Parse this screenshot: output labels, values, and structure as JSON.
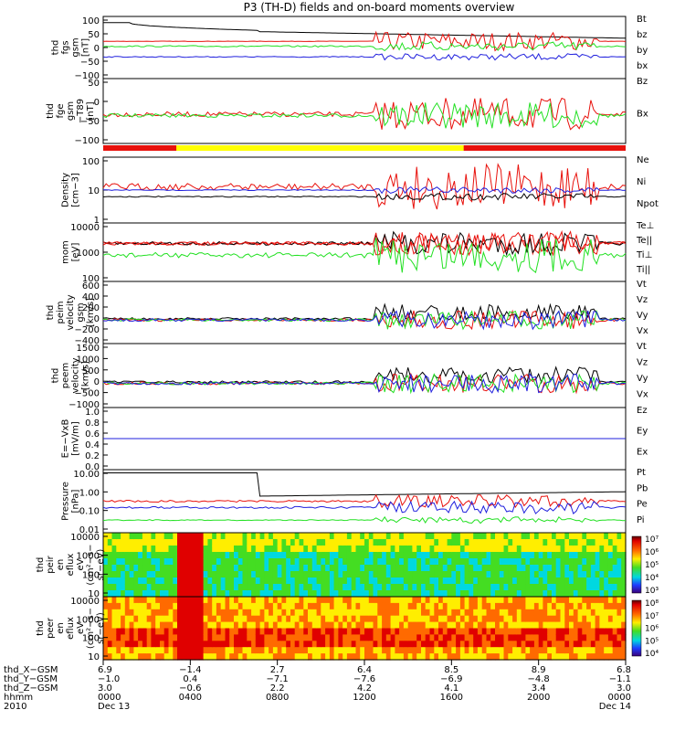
{
  "title": "P3 (TH-D) fields and on-board moments overview",
  "colors": {
    "black": "#000000",
    "red": "#e8110c",
    "green": "#22e022",
    "blue": "#1f1fdd",
    "yellow": "#ffff00"
  },
  "chart_data": [
    {
      "type": "line",
      "name": "fgs_gsm",
      "ylabel_lines": [
        "thd",
        "fgs",
        "gsm",
        "[nT]"
      ],
      "ylim": [
        -100,
        100
      ],
      "yticks": [
        "100",
        "50",
        "0",
        "−50",
        "−100"
      ],
      "series": [
        {
          "name": "Bt",
          "color": "black"
        },
        {
          "name": "bz",
          "color": "red"
        },
        {
          "name": "by",
          "color": "green"
        },
        {
          "name": "bx",
          "color": "blue"
        }
      ]
    },
    {
      "type": "line",
      "name": "fge_t89",
      "ylabel_lines": [
        "thd",
        "fge",
        "gsm",
        "−T89",
        "[nT]"
      ],
      "ylim": [
        -125,
        50
      ],
      "yticks": [
        "50",
        "0",
        "−50",
        "−100"
      ],
      "series": [
        {
          "name": "Bz",
          "color": "red"
        },
        {
          "name": "Bx",
          "color": "green"
        }
      ]
    },
    {
      "type": "line",
      "name": "density",
      "ylabel_lines": [
        "Density",
        "[cm−3]"
      ],
      "scale": "log",
      "yticks": [
        "100",
        "10",
        "1"
      ],
      "series": [
        {
          "name": "Ne",
          "color": "red"
        },
        {
          "name": "Ni",
          "color": "black"
        },
        {
          "name": "Npot",
          "color": "blue"
        }
      ]
    },
    {
      "type": "line",
      "name": "temperature",
      "ylabel_lines": [
        "mom",
        "[eV]"
      ],
      "scale": "log",
      "yticks": [
        "10000",
        "1000",
        "100"
      ],
      "series": [
        {
          "name": "Te⊥",
          "color": "red"
        },
        {
          "name": "Te||",
          "color": "black"
        },
        {
          "name": "Ti⊥",
          "color": "red"
        },
        {
          "name": "Ti||",
          "color": "green"
        }
      ]
    },
    {
      "type": "line",
      "name": "peim_velocity",
      "ylabel_lines": [
        "thd",
        "peim",
        "velocity",
        "gsm",
        "[km/s]"
      ],
      "ylim": [
        -400,
        600
      ],
      "yticks": [
        "600",
        "400",
        "200",
        "0",
        "−200",
        "−400"
      ],
      "series": [
        {
          "name": "Vt",
          "color": "black"
        },
        {
          "name": "Vz",
          "color": "red"
        },
        {
          "name": "Vy",
          "color": "green"
        },
        {
          "name": "Vx",
          "color": "blue"
        }
      ]
    },
    {
      "type": "line",
      "name": "peem_velocity",
      "ylabel_lines": [
        "thd",
        "peem",
        "velocity",
        "[km/s]"
      ],
      "ylim": [
        -1500,
        1500
      ],
      "yticks": [
        "1500",
        "1000",
        "500",
        "0",
        "−500",
        "−1000"
      ],
      "series": [
        {
          "name": "Vt",
          "color": "black"
        },
        {
          "name": "Vz",
          "color": "red"
        },
        {
          "name": "Vy",
          "color": "green"
        },
        {
          "name": "Vx",
          "color": "blue"
        }
      ]
    },
    {
      "type": "line",
      "name": "efield",
      "ylabel_lines": [
        "E=−VxB",
        "[mV/m]"
      ],
      "ylim": [
        0,
        1
      ],
      "yticks": [
        "1.0",
        "0.8",
        "0.6",
        "0.4",
        "0.2",
        "0.0"
      ],
      "series": [
        {
          "name": "Ez",
          "color": "red"
        },
        {
          "name": "Ey",
          "color": "green"
        },
        {
          "name": "Ex",
          "color": "blue"
        }
      ]
    },
    {
      "type": "line",
      "name": "pressure",
      "ylabel_lines": [
        "Pressure",
        "[nPa]"
      ],
      "scale": "log",
      "yticks": [
        "10.00",
        "1.00",
        "0.10",
        "0.01"
      ],
      "series": [
        {
          "name": "Pt",
          "color": "black"
        },
        {
          "name": "Pb",
          "color": "red"
        },
        {
          "name": "Pe",
          "color": "green"
        },
        {
          "name": "Pi",
          "color": "blue"
        }
      ]
    },
    {
      "type": "heatmap",
      "name": "peir_eflux",
      "ylabel_lines": [
        "thd",
        "peir",
        "en",
        "eflux",
        "eV",
        "(cm²−s−",
        "sr−eV)"
      ],
      "scale": "log",
      "yticks": [
        "10000",
        "1000",
        "100",
        "10"
      ],
      "colorbar_labels": [
        "10⁷",
        "10⁶",
        "10⁵",
        "10⁴",
        "10³"
      ]
    },
    {
      "type": "heatmap",
      "name": "peer_eflux",
      "ylabel_lines": [
        "thd",
        "peer",
        "en",
        "eflux",
        "eV",
        "(cm²−s−",
        "sr−eV)"
      ],
      "scale": "log",
      "yticks": [
        "10000",
        "1000",
        "100",
        "10"
      ],
      "colorbar_labels": [
        "10⁸",
        "10⁷",
        "10⁶",
        "10⁵",
        "10⁴"
      ]
    }
  ],
  "x_axis": {
    "row_labels": [
      "thd_X−GSM",
      "thd_Y−GSM",
      "thd_Z−GSM",
      "hhmm",
      "2010"
    ],
    "columns": [
      {
        "values": [
          "6.9",
          "−1.0",
          "3.0",
          "0000",
          "Dec 13"
        ]
      },
      {
        "values": [
          "−1.4",
          "0.4",
          "−0.6",
          "0400",
          ""
        ]
      },
      {
        "values": [
          "2.7",
          "−7.1",
          "2.2",
          "0800",
          ""
        ]
      },
      {
        "values": [
          "6.4",
          "−7.6",
          "4.2",
          "1200",
          ""
        ]
      },
      {
        "values": [
          "8.5",
          "−6.9",
          "4.1",
          "1600",
          ""
        ]
      },
      {
        "values": [
          "8.9",
          "−4.8",
          "3.4",
          "2000",
          ""
        ]
      },
      {
        "values": [
          "6.8",
          "−1.1",
          "3.0",
          "0000",
          "Dec 14"
        ]
      }
    ]
  }
}
